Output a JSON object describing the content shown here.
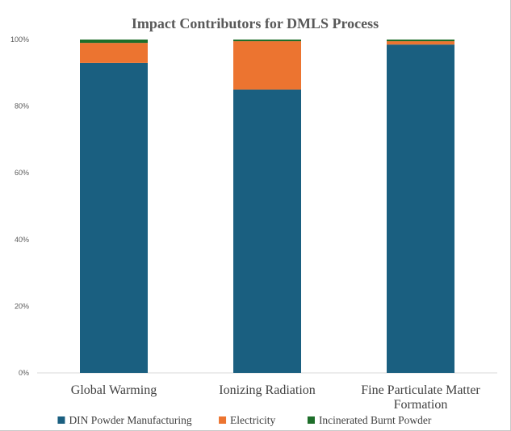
{
  "chart_data": {
    "type": "bar",
    "stacked": true,
    "percent": true,
    "title": "Impact Contributors for DMLS Process",
    "xlabel": "",
    "ylabel": "",
    "ylim": [
      0,
      100
    ],
    "yticks": [
      "0%",
      "20%",
      "40%",
      "60%",
      "80%",
      "100%"
    ],
    "categories": [
      [
        "Global Warming"
      ],
      [
        "Ionizing Radiation"
      ],
      [
        "Fine Particulate Matter",
        "Formation"
      ]
    ],
    "series": [
      {
        "name": "DIN Powder Manufacturing",
        "color": "#1a5f80",
        "values": [
          93.0,
          85.0,
          98.5
        ]
      },
      {
        "name": "Electricity",
        "color": "#ec7430",
        "values": [
          6.0,
          14.5,
          1.0
        ]
      },
      {
        "name": "Incinerated Burnt Powder",
        "color": "#1e6e2a",
        "values": [
          1.0,
          0.5,
          0.5
        ]
      }
    ],
    "grid": false,
    "legend_position": "bottom"
  }
}
